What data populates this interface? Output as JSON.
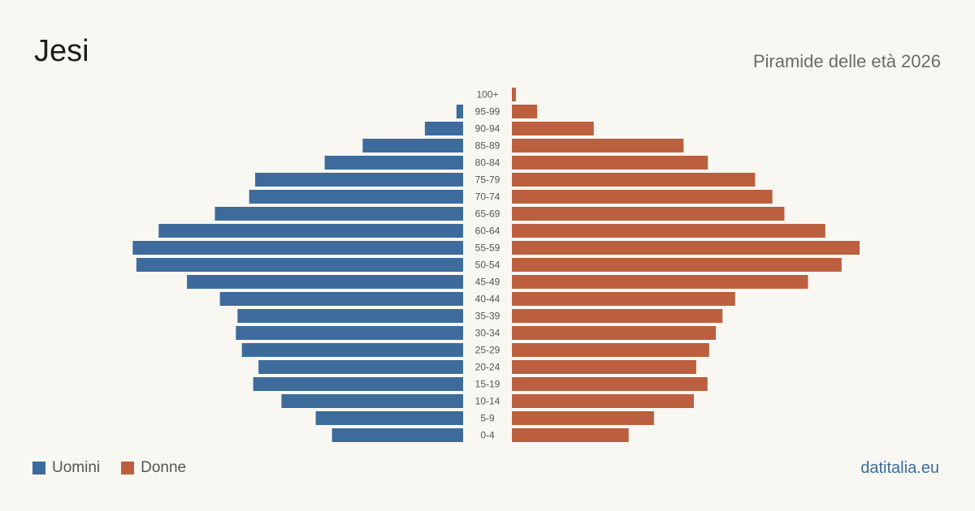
{
  "header": {
    "title": "Jesi",
    "subtitle": "Piramide delle età 2026"
  },
  "legend": {
    "men_label": "Uomini",
    "women_label": "Donne"
  },
  "brand": "datitalia.eu",
  "colors": {
    "men": "#3d6b9c",
    "women": "#bc5f3f",
    "background": "#f9f7f2"
  },
  "chart_data": {
    "type": "bar",
    "orientation": "horizontal-pyramid",
    "title": "Piramide delle età 2026",
    "categories": [
      "100+",
      "95-99",
      "90-94",
      "85-89",
      "80-84",
      "75-79",
      "70-74",
      "65-69",
      "60-64",
      "55-59",
      "50-54",
      "45-49",
      "40-44",
      "35-39",
      "30-34",
      "25-29",
      "20-24",
      "15-19",
      "10-14",
      "5-9",
      "0-4"
    ],
    "series": [
      {
        "name": "Uomini",
        "values": [
          0,
          20,
          115,
          302,
          416,
          625,
          643,
          746,
          915,
          993,
          982,
          830,
          731,
          678,
          683,
          665,
          615,
          631,
          546,
          443,
          394
        ]
      },
      {
        "name": "Donne",
        "values": [
          12,
          76,
          246,
          516,
          589,
          731,
          783,
          819,
          942,
          1045,
          991,
          890,
          671,
          633,
          613,
          593,
          554,
          588,
          547,
          427,
          351
        ]
      }
    ],
    "xlim": [
      0,
      1050
    ],
    "grid": false,
    "legend_position": "bottom-left"
  }
}
